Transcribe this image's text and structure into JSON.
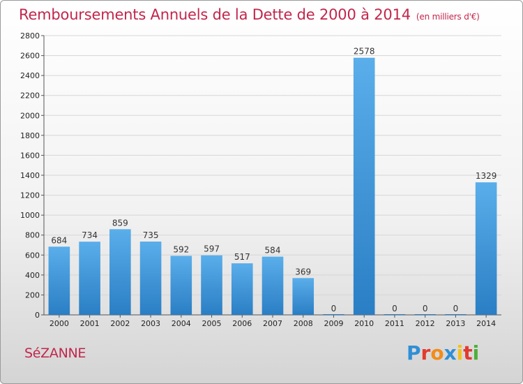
{
  "header": {
    "title": "Remboursements Annuels de la Dette de 2000 à 2014",
    "unit": "(en milliers d'€)"
  },
  "footer": {
    "town": "SéZANNE",
    "logo_letters": [
      "P",
      "r",
      "o",
      "x",
      "i",
      "t",
      "i"
    ],
    "logo_colors": [
      "#2f8fd6",
      "#e23a2f",
      "#f28c1b",
      "#2f8fd6",
      "#f2c11b",
      "#e23a2f",
      "#4caf3a"
    ]
  },
  "chart_data": {
    "type": "bar",
    "categories": [
      "2000",
      "2001",
      "2002",
      "2003",
      "2004",
      "2005",
      "2006",
      "2007",
      "2008",
      "2009",
      "2010",
      "2011",
      "2012",
      "2013",
      "2014"
    ],
    "values": [
      684,
      734,
      859,
      735,
      592,
      597,
      517,
      584,
      369,
      0,
      2578,
      0,
      0,
      0,
      1329
    ],
    "data_labels": [
      "684",
      "734",
      "859",
      "735",
      "592",
      "597",
      "517",
      "584",
      "369",
      "0",
      "2578",
      "0",
      "0",
      "0",
      "1329"
    ],
    "y_ticks": [
      "0",
      "200",
      "400",
      "600",
      "800",
      "1000",
      "1200",
      "1400",
      "1600",
      "1800",
      "2000",
      "2200",
      "2400",
      "2600",
      "2800"
    ],
    "ylim": [
      0,
      2800
    ],
    "grid": true,
    "bar_color_top": "#5aaeea",
    "bar_color_bottom": "#2a7ec4"
  }
}
